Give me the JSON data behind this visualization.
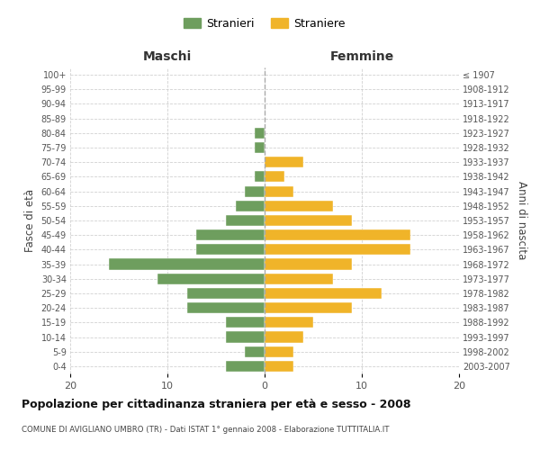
{
  "age_groups": [
    "100+",
    "95-99",
    "90-94",
    "85-89",
    "80-84",
    "75-79",
    "70-74",
    "65-69",
    "60-64",
    "55-59",
    "50-54",
    "45-49",
    "40-44",
    "35-39",
    "30-34",
    "25-29",
    "20-24",
    "15-19",
    "10-14",
    "5-9",
    "0-4"
  ],
  "birth_years": [
    "≤ 1907",
    "1908-1912",
    "1913-1917",
    "1918-1922",
    "1923-1927",
    "1928-1932",
    "1933-1937",
    "1938-1942",
    "1943-1947",
    "1948-1952",
    "1953-1957",
    "1958-1962",
    "1963-1967",
    "1968-1972",
    "1973-1977",
    "1978-1982",
    "1983-1987",
    "1988-1992",
    "1993-1997",
    "1998-2002",
    "2003-2007"
  ],
  "males": [
    0,
    0,
    0,
    0,
    1,
    1,
    0,
    1,
    2,
    3,
    4,
    7,
    7,
    16,
    11,
    8,
    8,
    4,
    4,
    2,
    4
  ],
  "females": [
    0,
    0,
    0,
    0,
    0,
    0,
    4,
    2,
    3,
    7,
    9,
    15,
    15,
    9,
    7,
    12,
    9,
    5,
    4,
    3,
    3
  ],
  "male_color": "#6e9e5e",
  "female_color": "#f0b429",
  "title": "Popolazione per cittadinanza straniera per età e sesso - 2008",
  "subtitle": "COMUNE DI AVIGLIANO UMBRO (TR) - Dati ISTAT 1° gennaio 2008 - Elaborazione TUTTITALIA.IT",
  "legend_male": "Stranieri",
  "legend_female": "Straniere",
  "xlabel_left": "Maschi",
  "xlabel_right": "Femmine",
  "ylabel_left": "Fasce di età",
  "ylabel_right": "Anni di nascita",
  "xlim": 20,
  "background_color": "#ffffff",
  "grid_color": "#cccccc"
}
